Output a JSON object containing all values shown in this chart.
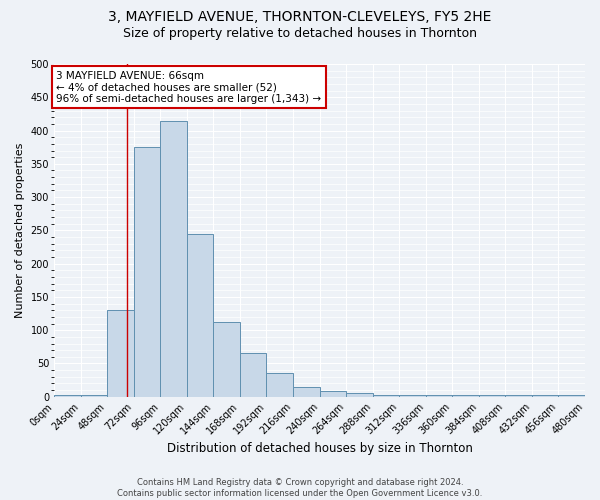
{
  "title": "3, MAYFIELD AVENUE, THORNTON-CLEVELEYS, FY5 2HE",
  "subtitle": "Size of property relative to detached houses in Thornton",
  "xlabel": "Distribution of detached houses by size in Thornton",
  "ylabel": "Number of detached properties",
  "bar_values": [
    3,
    3,
    130,
    375,
    415,
    245,
    112,
    65,
    35,
    15,
    8,
    5,
    3,
    3,
    2,
    2,
    2,
    2,
    2,
    2
  ],
  "bin_edges": [
    0,
    24,
    48,
    72,
    96,
    120,
    144,
    168,
    192,
    216,
    240,
    264,
    288,
    312,
    336,
    360,
    384,
    408,
    432,
    456,
    480
  ],
  "bar_color": "#c8d8e8",
  "bar_edge_color": "#6090b0",
  "property_size": 66,
  "annotation_line1": "3 MAYFIELD AVENUE: 66sqm",
  "annotation_line2": "← 4% of detached houses are smaller (52)",
  "annotation_line3": "96% of semi-detached houses are larger (1,343) →",
  "annotation_box_color": "#ffffff",
  "annotation_border_color": "#cc0000",
  "vline_color": "#cc0000",
  "ylim": [
    0,
    500
  ],
  "xlim": [
    0,
    480
  ],
  "footer_text": "Contains HM Land Registry data © Crown copyright and database right 2024.\nContains public sector information licensed under the Open Government Licence v3.0.",
  "title_fontsize": 10,
  "subtitle_fontsize": 9,
  "tick_label_fontsize": 7,
  "ylabel_fontsize": 8,
  "xlabel_fontsize": 8.5,
  "annotation_fontsize": 7.5,
  "footer_fontsize": 6,
  "background_color": "#eef2f7",
  "grid_color": "#ffffff",
  "ytick_interval": 50
}
